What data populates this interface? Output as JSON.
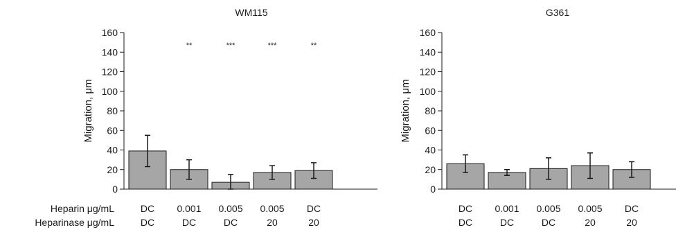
{
  "row_labels": {
    "heparin": "Heparin μg/mL",
    "heparinase": "Heparinase μg/mL"
  },
  "chart_data": [
    {
      "type": "bar",
      "title": "WM115",
      "ylabel": "Migration, μm",
      "xlabel": "",
      "ylim": [
        0,
        160
      ],
      "yticks": [
        0,
        20,
        40,
        60,
        80,
        100,
        120,
        140,
        160
      ],
      "categories": [
        "DC/DC",
        "0.001/DC",
        "0.005/DC",
        "0.005/20",
        "DC/20"
      ],
      "heparin": [
        "DC",
        "0.001",
        "0.005",
        "0.005",
        "DC"
      ],
      "heparinase": [
        "DC",
        "DC",
        "DC",
        "20",
        "20"
      ],
      "values": [
        39,
        20,
        7,
        17,
        19
      ],
      "errors": [
        16,
        10,
        8,
        7,
        8
      ],
      "significance": [
        "",
        "**",
        "***",
        "***",
        "**"
      ],
      "bar_color": "#a6a6a6",
      "grid": false
    },
    {
      "type": "bar",
      "title": "G361",
      "ylabel": "Migration, μm",
      "xlabel": "",
      "ylim": [
        0,
        160
      ],
      "yticks": [
        0,
        20,
        40,
        60,
        80,
        100,
        120,
        140,
        160
      ],
      "categories": [
        "DC/DC",
        "0.001/DC",
        "0.005/DC",
        "0.005/20",
        "DC/20"
      ],
      "heparin": [
        "DC",
        "0.001",
        "0.005",
        "0.005",
        "DC"
      ],
      "heparinase": [
        "DC",
        "DC",
        "DC",
        "20",
        "20"
      ],
      "values": [
        26,
        17,
        21,
        24,
        20
      ],
      "errors": [
        9,
        3,
        11,
        13,
        8
      ],
      "significance": [
        "",
        "",
        "",
        "",
        ""
      ],
      "bar_color": "#a6a6a6",
      "grid": false
    }
  ]
}
